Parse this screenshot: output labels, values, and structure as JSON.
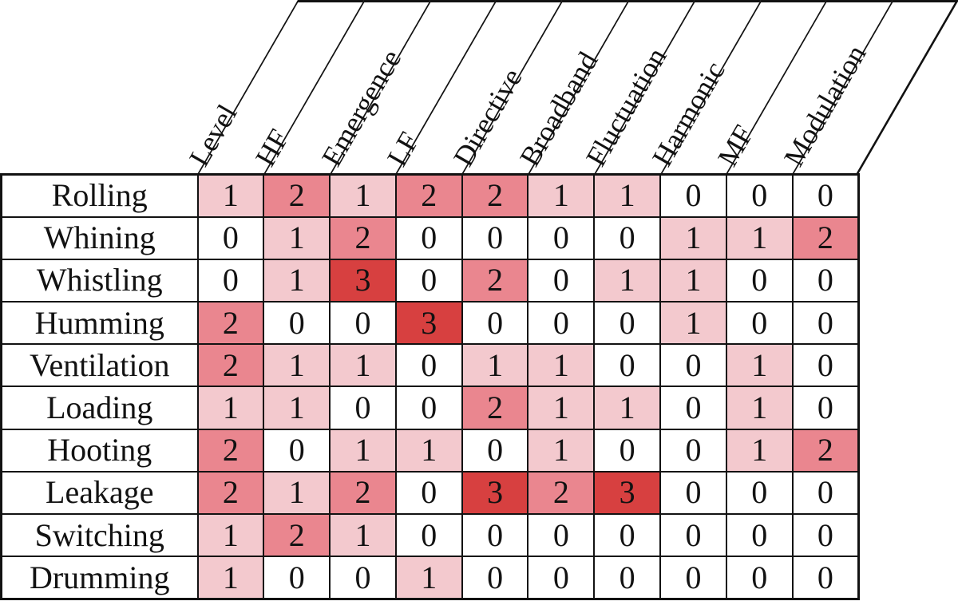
{
  "colors": {
    "border": "#121212",
    "text": "#121212",
    "background": "#ffffff"
  },
  "chart_data": {
    "type": "heatmap",
    "title": "",
    "columns": [
      "Level",
      "HF",
      "Emergence",
      "LF",
      "Directive",
      "Broadband",
      "Fluctuation",
      "Harmonic",
      "MF",
      "Modulation"
    ],
    "rows": [
      "Rolling",
      "Whining",
      "Whistling",
      "Humming",
      "Ventilation",
      "Loading",
      "Hooting",
      "Leakage",
      "Switching",
      "Drumming"
    ],
    "values": [
      [
        1,
        2,
        1,
        2,
        2,
        1,
        1,
        0,
        0,
        0
      ],
      [
        0,
        1,
        2,
        0,
        0,
        0,
        0,
        1,
        1,
        2
      ],
      [
        0,
        1,
        3,
        0,
        2,
        0,
        1,
        1,
        0,
        0
      ],
      [
        2,
        0,
        0,
        3,
        0,
        0,
        0,
        1,
        0,
        0
      ],
      [
        2,
        1,
        1,
        0,
        1,
        1,
        0,
        0,
        1,
        0
      ],
      [
        1,
        1,
        0,
        0,
        2,
        1,
        1,
        0,
        1,
        0
      ],
      [
        2,
        0,
        1,
        1,
        0,
        1,
        0,
        0,
        1,
        2
      ],
      [
        2,
        1,
        2,
        0,
        3,
        2,
        3,
        0,
        0,
        0
      ],
      [
        1,
        2,
        1,
        0,
        0,
        0,
        0,
        0,
        0,
        0
      ],
      [
        1,
        0,
        0,
        1,
        0,
        0,
        0,
        0,
        0,
        0
      ]
    ],
    "value_range": [
      0,
      3
    ],
    "value_colors": {
      "0": "#ffffff",
      "1": "#f3c9ce",
      "2": "#ea868f",
      "3": "#d74040"
    },
    "cell_text_visible": true,
    "legend": "none",
    "header_slant_degrees": 60
  }
}
